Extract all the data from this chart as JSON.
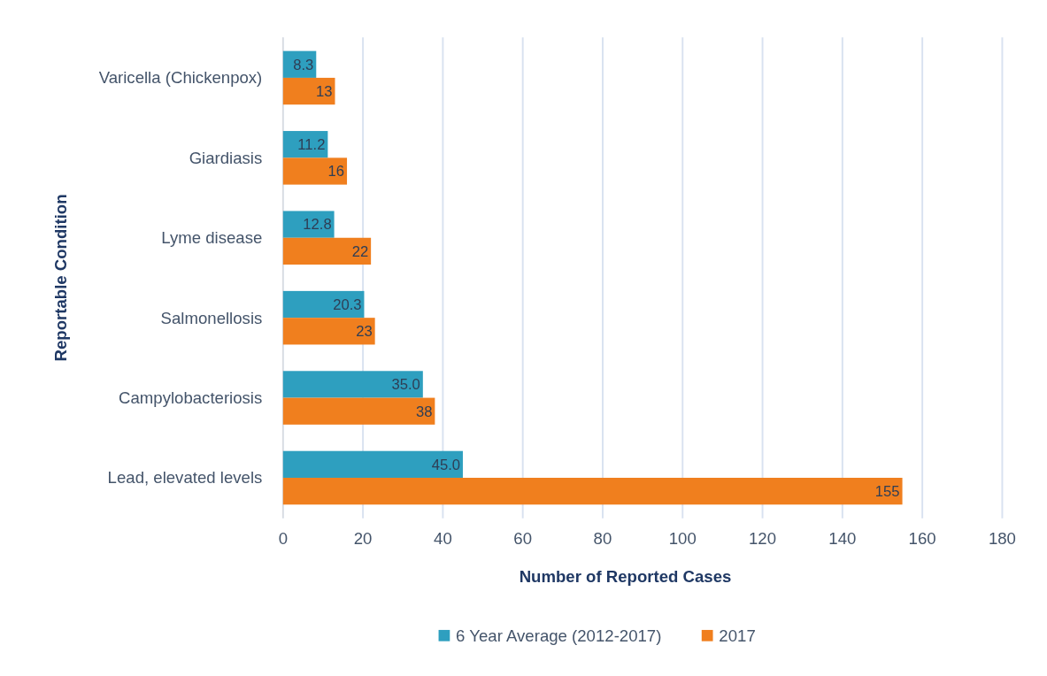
{
  "chart_data": {
    "type": "bar",
    "orientation": "horizontal",
    "xlabel": "Number of Reported Cases",
    "ylabel": "Reportable Condition",
    "categories": [
      "Varicella (Chickenpox)",
      "Giardiasis",
      "Lyme disease",
      "Salmonellosis",
      "Campylobacteriosis",
      "Lead, elevated levels"
    ],
    "series": [
      {
        "name": "6 Year Average (2012-2017)",
        "color": "#2e9fbf",
        "values": [
          8.3,
          11.2,
          12.8,
          20.3,
          35.0,
          45.0
        ],
        "value_labels": [
          "8.3",
          "11.2",
          "12.8",
          "20.3",
          "35.0",
          "45.0"
        ]
      },
      {
        "name": "2017",
        "color": "#f07f1e",
        "values": [
          13,
          16,
          22,
          23,
          38,
          155
        ],
        "value_labels": [
          "13",
          "16",
          "22",
          "23",
          "38",
          "155"
        ]
      }
    ],
    "xlim": [
      0,
      180
    ],
    "xticks": [
      0,
      20,
      40,
      60,
      80,
      100,
      120,
      140,
      160,
      180
    ],
    "grid": "x",
    "legend": "bottom"
  }
}
